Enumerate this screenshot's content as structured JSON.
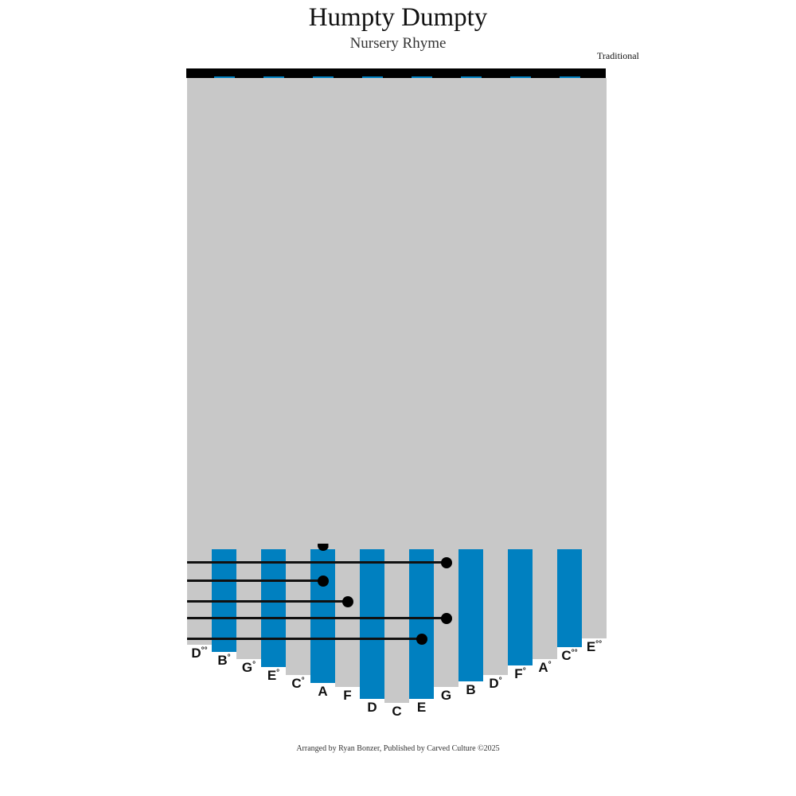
{
  "header": {
    "title": "Humpty Dumpty",
    "subtitle": "Nursery Rhyme",
    "composer": "Traditional"
  },
  "footer": "Arranged by Ryan Bonzer, Published by Carved Culture ©2025",
  "colors": {
    "blue_tine": "#0080c0",
    "gray_tine": "#c8c8c8",
    "note": "#000000"
  },
  "tines": [
    {
      "note": "D",
      "mark": "°°",
      "color": "gray"
    },
    {
      "note": "B",
      "mark": "°",
      "color": "blue"
    },
    {
      "note": "G",
      "mark": "°",
      "color": "gray"
    },
    {
      "note": "E",
      "mark": "°",
      "color": "blue"
    },
    {
      "note": "C",
      "mark": "°",
      "color": "gray"
    },
    {
      "note": "A",
      "mark": "",
      "color": "blue"
    },
    {
      "note": "F",
      "mark": "",
      "color": "gray"
    },
    {
      "note": "D",
      "mark": "",
      "color": "blue"
    },
    {
      "note": "C",
      "mark": "",
      "color": "gray"
    },
    {
      "note": "E",
      "mark": "",
      "color": "blue"
    },
    {
      "note": "G",
      "mark": "",
      "color": "gray"
    },
    {
      "note": "B",
      "mark": "",
      "color": "blue"
    },
    {
      "note": "D",
      "mark": "°",
      "color": "gray"
    },
    {
      "note": "F",
      "mark": "°",
      "color": "blue"
    },
    {
      "note": "A",
      "mark": "°",
      "color": "gray"
    },
    {
      "note": "C",
      "mark": "°°",
      "color": "blue"
    },
    {
      "note": "E",
      "mark": "°°",
      "color": "gray"
    }
  ],
  "notes_top_to_bottom": [
    "A",
    "G",
    "A",
    "F",
    "G",
    "E"
  ]
}
